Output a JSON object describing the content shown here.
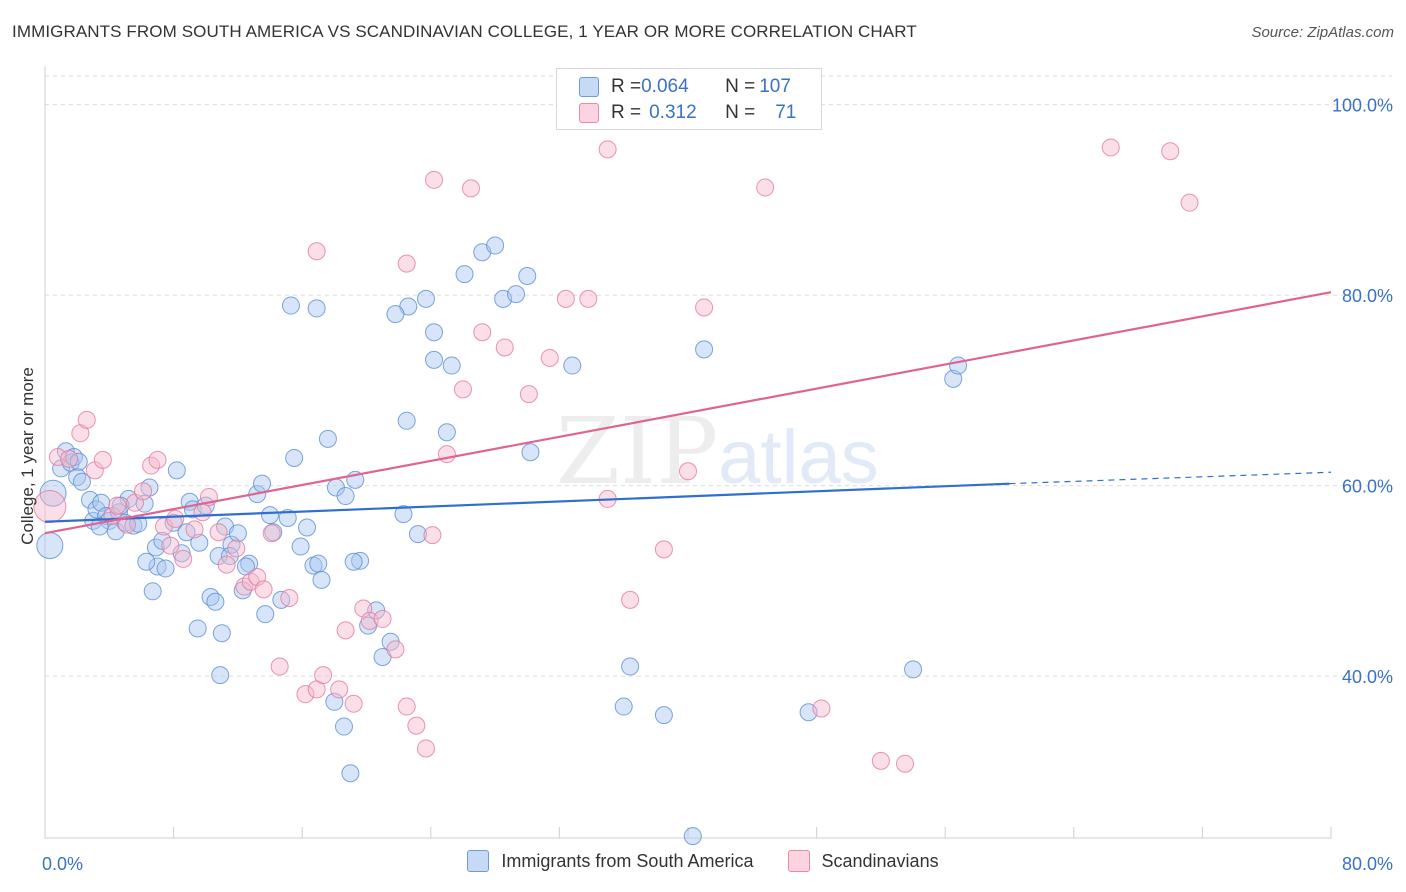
{
  "title": "IMMIGRANTS FROM SOUTH AMERICA VS SCANDINAVIAN COLLEGE, 1 YEAR OR MORE CORRELATION CHART",
  "source": "Source: ZipAtlas.com",
  "watermark": {
    "main": "ZIP",
    "sub": "atlas"
  },
  "stats": [
    {
      "r_label": "R = ",
      "r_value": "0.064",
      "n_label": "N = ",
      "n_value": "107",
      "color": "#a9c6ef"
    },
    {
      "r_label": "R = ",
      "r_value": "0.312",
      "n_label": "N = ",
      "n_value": "71",
      "color": "#f6b8cb"
    }
  ],
  "legend": [
    {
      "label": "Immigrants from South America",
      "color": "#a9c6ef"
    },
    {
      "label": "Scandinavians",
      "color": "#f6b8cb"
    }
  ],
  "chart_data": {
    "type": "scatter",
    "title": "IMMIGRANTS FROM SOUTH AMERICA VS SCANDINAVIAN COLLEGE, 1 YEAR OR MORE CORRELATION CHART",
    "xlabel": "",
    "ylabel": "College, 1 year or more",
    "xlim": [
      0,
      80
    ],
    "ylim": [
      23,
      103
    ],
    "x_tick_labels": [
      "0.0%",
      "80.0%"
    ],
    "y_ticks": [
      40,
      60,
      80,
      100
    ],
    "y_tick_labels": [
      "40.0%",
      "60.0%",
      "80.0%",
      "100.0%"
    ],
    "grid": "horizontal dashed",
    "legend_position": "bottom",
    "series": [
      {
        "name": "Immigrants from South America",
        "color": "#5b8fd6",
        "fill": "#a9c6ef",
        "trend": {
          "x": [
            0,
            60
          ],
          "y": [
            56.2,
            60.2
          ],
          "dashed_to": [
            80,
            61.4
          ]
        },
        "points": [
          [
            0.3,
            53.7
          ],
          [
            0.5,
            59.2
          ],
          [
            1.0,
            61.8
          ],
          [
            1.3,
            63.6
          ],
          [
            1.6,
            62.4
          ],
          [
            1.8,
            63.0
          ],
          [
            2.0,
            60.9
          ],
          [
            2.3,
            60.4
          ],
          [
            2.8,
            58.5
          ],
          [
            3.0,
            56.3
          ],
          [
            3.2,
            57.5
          ],
          [
            3.5,
            58.2
          ],
          [
            3.8,
            56.8
          ],
          [
            4.0,
            56.3
          ],
          [
            4.4,
            55.2
          ],
          [
            4.6,
            57.2
          ],
          [
            5.0,
            56.1
          ],
          [
            5.5,
            55.8
          ],
          [
            5.8,
            56.0
          ],
          [
            6.2,
            58.1
          ],
          [
            6.5,
            59.8
          ],
          [
            6.7,
            48.9
          ],
          [
            6.9,
            53.5
          ],
          [
            7.0,
            51.5
          ],
          [
            7.3,
            54.2
          ],
          [
            7.5,
            51.3
          ],
          [
            8.0,
            56.1
          ],
          [
            8.2,
            61.6
          ],
          [
            8.5,
            52.9
          ],
          [
            8.8,
            55.1
          ],
          [
            9.0,
            58.3
          ],
          [
            9.2,
            57.5
          ],
          [
            9.6,
            54.0
          ],
          [
            10.0,
            57.9
          ],
          [
            10.3,
            48.3
          ],
          [
            10.6,
            47.8
          ],
          [
            10.8,
            52.6
          ],
          [
            11.2,
            55.7
          ],
          [
            11.6,
            53.8
          ],
          [
            12.0,
            55.0
          ],
          [
            12.3,
            49.0
          ],
          [
            12.7,
            51.8
          ],
          [
            13.2,
            59.1
          ],
          [
            13.7,
            46.5
          ],
          [
            14.0,
            56.9
          ],
          [
            14.2,
            55.1
          ],
          [
            14.7,
            48.0
          ],
          [
            15.1,
            56.6
          ],
          [
            15.5,
            62.9
          ],
          [
            15.9,
            53.6
          ],
          [
            16.3,
            55.6
          ],
          [
            16.7,
            51.6
          ],
          [
            17.0,
            51.8
          ],
          [
            17.2,
            50.1
          ],
          [
            17.6,
            64.9
          ],
          [
            18.1,
            59.8
          ],
          [
            18.7,
            58.9
          ],
          [
            19.3,
            60.6
          ],
          [
            19.6,
            52.1
          ],
          [
            20.1,
            45.3
          ],
          [
            20.6,
            46.9
          ],
          [
            21.0,
            42.0
          ],
          [
            21.5,
            43.6
          ],
          [
            22.3,
            57.0
          ],
          [
            22.5,
            66.8
          ],
          [
            23.2,
            54.9
          ],
          [
            24.2,
            73.2
          ],
          [
            25.0,
            65.6
          ],
          [
            25.3,
            72.6
          ],
          [
            26.1,
            82.2
          ],
          [
            27.2,
            84.5
          ],
          [
            28.0,
            85.2
          ],
          [
            28.5,
            79.6
          ],
          [
            29.3,
            80.1
          ],
          [
            30.0,
            82.0
          ],
          [
            30.2,
            63.5
          ],
          [
            32.8,
            72.6
          ],
          [
            36.0,
            36.8
          ],
          [
            36.4,
            41.0
          ],
          [
            38.5,
            35.9
          ],
          [
            41.0,
            74.3
          ],
          [
            47.5,
            36.2
          ],
          [
            54.0,
            40.7
          ],
          [
            56.5,
            71.2
          ],
          [
            56.8,
            72.6
          ],
          [
            13.5,
            60.2
          ],
          [
            11.0,
            44.5
          ],
          [
            9.5,
            45.0
          ],
          [
            15.3,
            78.9
          ],
          [
            16.9,
            78.6
          ],
          [
            22.6,
            78.8
          ],
          [
            23.7,
            79.6
          ],
          [
            24.2,
            76.1
          ],
          [
            21.8,
            78.0
          ],
          [
            19.2,
            52.0
          ],
          [
            18.0,
            37.3
          ],
          [
            18.6,
            34.7
          ],
          [
            19.0,
            29.8
          ],
          [
            40.3,
            23.2
          ],
          [
            10.9,
            40.1
          ],
          [
            11.5,
            52.6
          ],
          [
            6.3,
            52.0
          ],
          [
            3.4,
            55.7
          ],
          [
            2.1,
            62.5
          ],
          [
            5.2,
            58.6
          ],
          [
            4.7,
            57.9
          ],
          [
            12.5,
            51.5
          ]
        ]
      },
      {
        "name": "Scandinavians",
        "color": "#e4799d",
        "fill": "#f6b8cb",
        "trend": {
          "x": [
            0,
            80
          ],
          "y": [
            55.0,
            80.3
          ]
        },
        "points": [
          [
            0.3,
            57.8
          ],
          [
            0.8,
            63.0
          ],
          [
            1.5,
            62.8
          ],
          [
            2.2,
            65.5
          ],
          [
            2.6,
            66.9
          ],
          [
            3.1,
            61.6
          ],
          [
            3.6,
            62.7
          ],
          [
            4.2,
            56.8
          ],
          [
            4.5,
            57.9
          ],
          [
            5.1,
            55.9
          ],
          [
            5.6,
            58.2
          ],
          [
            6.1,
            59.4
          ],
          [
            6.6,
            62.1
          ],
          [
            7.0,
            62.7
          ],
          [
            7.4,
            55.7
          ],
          [
            7.8,
            53.7
          ],
          [
            8.1,
            56.5
          ],
          [
            8.6,
            52.3
          ],
          [
            9.3,
            55.4
          ],
          [
            9.8,
            57.2
          ],
          [
            10.2,
            58.8
          ],
          [
            10.8,
            55.1
          ],
          [
            11.3,
            51.7
          ],
          [
            11.9,
            53.4
          ],
          [
            12.4,
            49.4
          ],
          [
            12.8,
            49.9
          ],
          [
            13.2,
            50.4
          ],
          [
            13.6,
            49.1
          ],
          [
            14.1,
            55.0
          ],
          [
            14.6,
            41.0
          ],
          [
            15.2,
            48.2
          ],
          [
            16.2,
            38.1
          ],
          [
            16.9,
            38.6
          ],
          [
            17.3,
            40.1
          ],
          [
            18.3,
            38.6
          ],
          [
            18.7,
            44.8
          ],
          [
            19.2,
            37.1
          ],
          [
            19.8,
            47.1
          ],
          [
            20.2,
            45.8
          ],
          [
            21.0,
            46.0
          ],
          [
            21.8,
            42.8
          ],
          [
            22.5,
            36.8
          ],
          [
            23.1,
            34.8
          ],
          [
            23.7,
            32.4
          ],
          [
            24.1,
            54.8
          ],
          [
            25.0,
            63.3
          ],
          [
            26.0,
            70.1
          ],
          [
            27.2,
            76.1
          ],
          [
            28.6,
            74.5
          ],
          [
            30.1,
            69.6
          ],
          [
            31.4,
            73.4
          ],
          [
            32.4,
            79.6
          ],
          [
            33.8,
            79.6
          ],
          [
            35.0,
            58.6
          ],
          [
            36.4,
            48.0
          ],
          [
            38.5,
            53.3
          ],
          [
            40.0,
            61.5
          ],
          [
            41.0,
            78.7
          ],
          [
            44.8,
            91.3
          ],
          [
            48.3,
            36.6
          ],
          [
            52.0,
            31.1
          ],
          [
            53.5,
            30.8
          ],
          [
            66.3,
            95.5
          ],
          [
            70.0,
            95.1
          ],
          [
            71.2,
            89.7
          ],
          [
            26.5,
            91.2
          ],
          [
            24.2,
            92.1
          ],
          [
            35.0,
            95.3
          ],
          [
            39.7,
            99.9
          ],
          [
            16.9,
            84.6
          ],
          [
            22.5,
            83.3
          ]
        ]
      }
    ]
  }
}
